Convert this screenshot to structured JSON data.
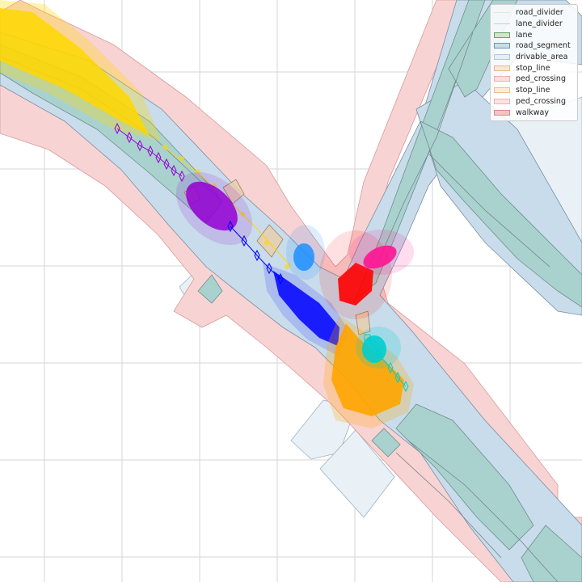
{
  "legend": [
    {
      "label": "road_divider",
      "fill": "#ffffff",
      "edge": "#e5e5e5",
      "kind": "line"
    },
    {
      "label": "lane_divider",
      "fill": "#ffffff",
      "edge": "#c9c9e8",
      "kind": "line"
    },
    {
      "label": "lane",
      "fill": "#cfe5cf",
      "edge": "#6b9f6b",
      "kind": "patch"
    },
    {
      "label": "road_segment",
      "fill": "#c8dcec",
      "edge": "#7094b8",
      "kind": "patch"
    },
    {
      "label": "drivable_area",
      "fill": "#e6eef6",
      "edge": "#b5c6d6",
      "kind": "patch"
    },
    {
      "label": "stop_line",
      "fill": "#fbe6d2",
      "edge": "#e9b98a",
      "kind": "patch"
    },
    {
      "label": "ped_crossing",
      "fill": "#fbdedd",
      "edge": "#eeb1b0",
      "kind": "patch"
    },
    {
      "label": "stop_line",
      "fill": "#fdebd6",
      "edge": "#e9c08f",
      "kind": "patch"
    },
    {
      "label": "ped_crossing",
      "fill": "#fbe1e1",
      "edge": "#eeb1b0",
      "kind": "patch"
    },
    {
      "label": "walkway",
      "fill": "#f6c2c2",
      "edge": "#e08a8a",
      "kind": "patch"
    }
  ],
  "map_colors": {
    "walkway": "#f8d3d3",
    "walkway_edge": "#d99a9a",
    "road_segment": "#c8dceb",
    "lane": "#a9d2cf",
    "drivable_area": "#e9f1f6",
    "stop_line": "#e8cfae",
    "grid": "#d4d4d4"
  },
  "agents": [
    {
      "name": "yellow",
      "color": "#ffd700"
    },
    {
      "name": "purple",
      "color": "#9400d3"
    },
    {
      "name": "blue",
      "color": "#0000ff"
    },
    {
      "name": "dodgerblue",
      "color": "#1e90ff"
    },
    {
      "name": "red",
      "color": "#ff0000"
    },
    {
      "name": "deeppink",
      "color": "#ff1493"
    },
    {
      "name": "orange",
      "color": "#ffa500"
    },
    {
      "name": "cyan",
      "color": "#00ced1"
    }
  ]
}
